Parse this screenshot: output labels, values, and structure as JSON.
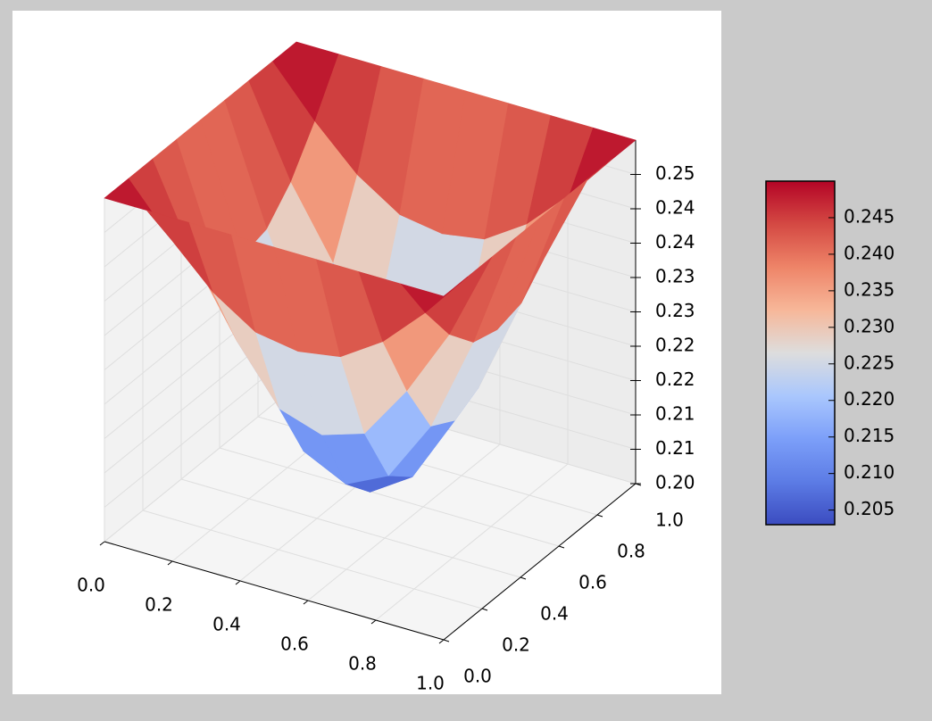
{
  "chart_data": {
    "type": "surface3d",
    "x": [
      0,
      0.125,
      0.25,
      0.375,
      0.5,
      0.625,
      0.75,
      0.875,
      1
    ],
    "y": [
      0,
      0.125,
      0.25,
      0.375,
      0.5,
      0.625,
      0.75,
      0.875,
      1
    ],
    "z": [
      [
        0.25,
        0.25,
        0.25,
        0.25,
        0.25,
        0.25,
        0.25,
        0.25,
        0.25
      ],
      [
        0.25,
        0.243,
        0.237,
        0.233,
        0.232,
        0.233,
        0.237,
        0.243,
        0.25
      ],
      [
        0.25,
        0.237,
        0.227,
        0.219,
        0.217,
        0.219,
        0.227,
        0.237,
        0.25
      ],
      [
        0.25,
        0.233,
        0.219,
        0.21,
        0.207,
        0.21,
        0.219,
        0.233,
        0.25
      ],
      [
        0.25,
        0.232,
        0.217,
        0.207,
        0.203,
        0.207,
        0.217,
        0.232,
        0.25
      ],
      [
        0.25,
        0.233,
        0.219,
        0.21,
        0.207,
        0.21,
        0.219,
        0.233,
        0.25
      ],
      [
        0.25,
        0.237,
        0.227,
        0.219,
        0.217,
        0.219,
        0.227,
        0.237,
        0.25
      ],
      [
        0.25,
        0.243,
        0.237,
        0.233,
        0.232,
        0.233,
        0.237,
        0.243,
        0.25
      ],
      [
        0.25,
        0.25,
        0.25,
        0.25,
        0.25,
        0.25,
        0.25,
        0.25,
        0.25
      ]
    ],
    "xlim": [
      0,
      1
    ],
    "ylim": [
      0,
      1
    ],
    "zlim": [
      0.2,
      0.25
    ],
    "xticks": [
      {
        "value": 0,
        "label": "0.0"
      },
      0.2,
      0.4,
      0.6,
      0.8,
      {
        "value": 1,
        "label": "1.0"
      }
    ],
    "yticks": [
      {
        "value": 0,
        "label": "0.0"
      },
      0.2,
      0.4,
      0.6,
      0.8,
      {
        "value": 1,
        "label": "1.0"
      }
    ],
    "zticks": [
      {
        "value": 0.2,
        "label": "0.20"
      },
      {
        "value": 0.205,
        "label": "0.21"
      },
      0.21,
      {
        "value": 0.215,
        "label": "0.22"
      },
      0.22,
      {
        "value": 0.225,
        "label": "0.23"
      },
      0.23,
      {
        "value": 0.235,
        "label": "0.24"
      },
      0.24,
      {
        "value": 0.245,
        "label": "0.25"
      }
    ],
    "colormap": "coolwarm",
    "grid": true,
    "colorbar": {
      "clim": [
        0.203,
        0.25
      ],
      "ticks": [
        0.205,
        {
          "value": 0.21,
          "label": "0.210"
        },
        0.215,
        {
          "value": 0.22,
          "label": "0.220"
        },
        0.225,
        {
          "value": 0.23,
          "label": "0.230"
        },
        0.235,
        {
          "value": 0.24,
          "label": "0.240"
        },
        0.245
      ]
    }
  }
}
